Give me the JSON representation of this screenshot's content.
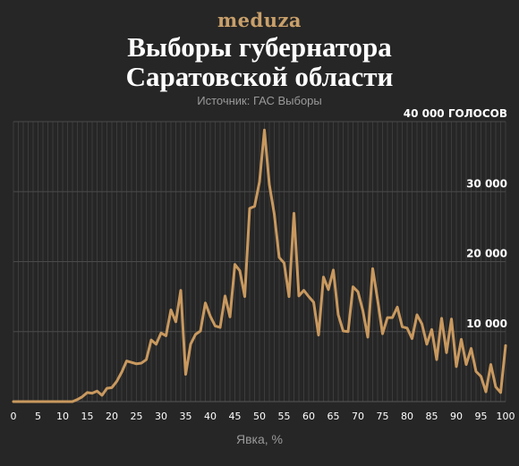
{
  "header": {
    "logo": "meduza",
    "title_line1": "Выборы губернатора",
    "title_line2": "Саратовской области",
    "source": "Источник: ГАС Выборы"
  },
  "colors": {
    "background": "#262626",
    "line": "#c9995f",
    "grid": "#3c3c3c",
    "logo": "#c9a06b"
  },
  "chart_data": {
    "type": "line",
    "title": "Выборы губернатора Саратовской области",
    "xlabel": "Явка, %",
    "ylabel": "",
    "xlim": [
      0,
      100
    ],
    "ylim": [
      0,
      40000
    ],
    "x_ticks": [
      0,
      5,
      10,
      15,
      20,
      25,
      30,
      35,
      40,
      45,
      50,
      55,
      60,
      65,
      70,
      75,
      80,
      85,
      90,
      95,
      100
    ],
    "x_tick_labels": [
      "0",
      "5",
      "10",
      "15",
      "20",
      "25",
      "30",
      "35",
      "40",
      "45",
      "50",
      "55",
      "60",
      "65",
      "70",
      "75",
      "80",
      "85",
      "90",
      "95",
      "100"
    ],
    "y_ticks": [
      10000,
      20000,
      30000,
      40000
    ],
    "y_tick_labels": [
      "10 000",
      "20 000",
      "30 000",
      "40 000 ГОЛОСОВ"
    ],
    "grid": true,
    "series": [
      {
        "x": [
          0,
          1,
          2,
          3,
          4,
          5,
          6,
          7,
          8,
          9,
          10,
          11,
          12,
          13,
          14,
          15,
          16,
          17,
          18,
          19,
          20,
          21,
          22,
          23,
          24,
          25,
          26,
          27,
          28,
          29,
          30,
          31,
          32,
          33,
          34,
          35,
          36,
          37,
          38,
          39,
          40,
          41,
          42,
          43,
          44,
          45,
          46,
          47,
          48,
          49,
          50,
          51,
          52,
          53,
          54,
          55,
          56,
          57,
          58,
          59,
          60,
          61,
          62,
          63,
          64,
          65,
          66,
          67,
          68,
          69,
          70,
          71,
          72,
          73,
          74,
          75,
          76,
          77,
          78,
          79,
          80,
          81,
          82,
          83,
          84,
          85,
          86,
          87,
          88,
          89,
          90,
          91,
          92,
          93,
          94,
          95,
          96,
          97,
          98,
          99,
          100
        ],
        "values": [
          0,
          0,
          0,
          0,
          0,
          0,
          0,
          0,
          0,
          0,
          0,
          0,
          0,
          300,
          700,
          1300,
          1200,
          1500,
          900,
          1900,
          2000,
          2900,
          4200,
          5800,
          5600,
          5400,
          5500,
          6000,
          8800,
          8200,
          9800,
          9400,
          13100,
          11400,
          15900,
          3900,
          8200,
          9600,
          10100,
          14100,
          12200,
          10800,
          10600,
          15100,
          12100,
          19600,
          18700,
          15000,
          27600,
          27900,
          31400,
          38800,
          31000,
          26800,
          20600,
          19800,
          15000,
          26900,
          15100,
          15900,
          15000,
          14200,
          9500,
          17800,
          16000,
          18800,
          12400,
          10100,
          10000,
          16400,
          15700,
          13000,
          9200,
          19000,
          14500,
          9700,
          12000,
          12000,
          13500,
          10700,
          10500,
          9000,
          12400,
          11100,
          8200,
          10300,
          6000,
          11900,
          7000,
          11800,
          5000,
          8900,
          5300,
          7600,
          4300,
          3600,
          1400,
          5300,
          2100,
          1300,
          8000
        ]
      }
    ]
  }
}
